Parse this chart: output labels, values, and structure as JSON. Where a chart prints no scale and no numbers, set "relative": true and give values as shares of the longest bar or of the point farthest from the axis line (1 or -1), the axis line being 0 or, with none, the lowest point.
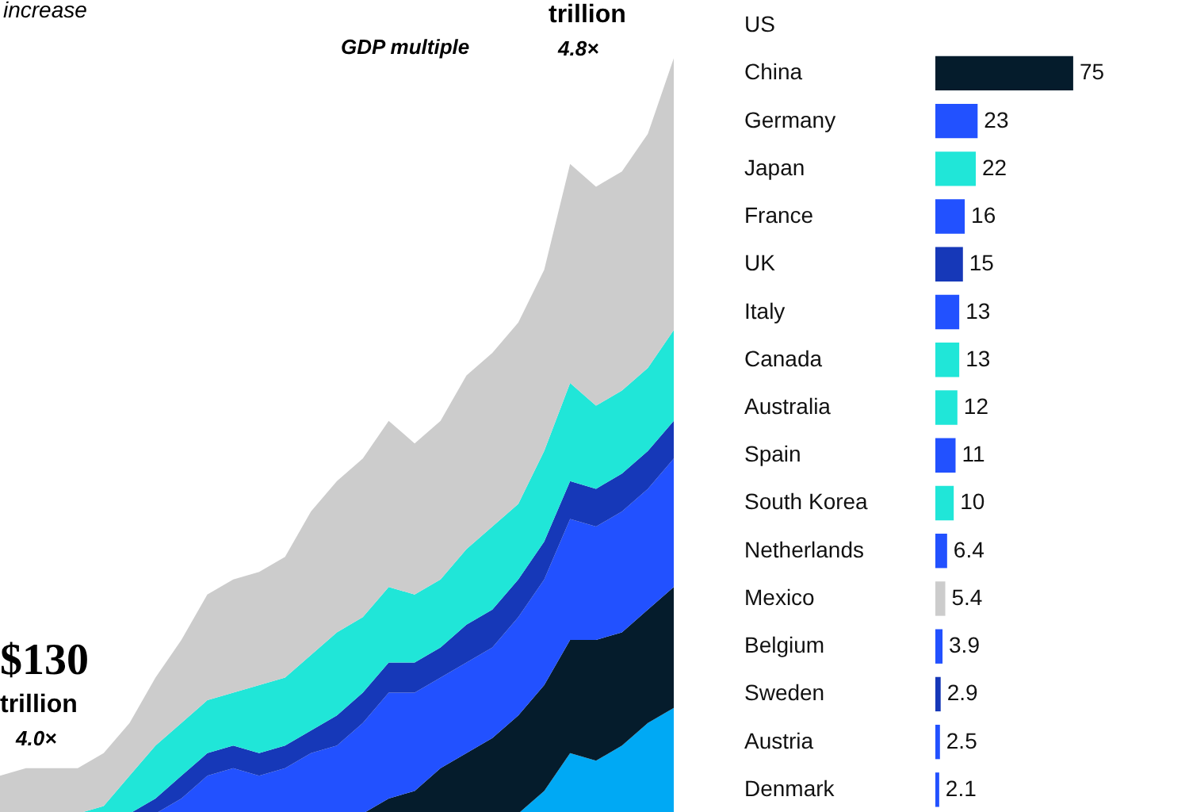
{
  "chart_data": [
    {
      "type": "area",
      "stacked": true,
      "relative": true,
      "tick_labels": false,
      "categories": [
        null,
        null,
        null,
        null,
        null,
        null,
        null,
        null,
        null,
        null,
        null,
        null,
        null,
        null,
        null,
        null,
        null,
        null,
        null,
        null,
        null,
        null,
        null,
        null,
        null,
        null,
        null
      ],
      "annotations": [
        "increase",
        "$130",
        "trillion",
        "4.0×",
        "trillion",
        "GDP multiple",
        "4.8×"
      ],
      "series": [
        {
          "color": "#00a9f4",
          "values": [
            0,
            0,
            0,
            0,
            0,
            0,
            0,
            0,
            0,
            0,
            0,
            0,
            0,
            0,
            0,
            0,
            0,
            0,
            0,
            0,
            0,
            0.03,
            0.08,
            0.07,
            0.09,
            0.12,
            0.14
          ]
        },
        {
          "color": "#051c2c",
          "values": [
            0,
            0,
            0,
            0,
            0,
            0,
            0,
            0,
            0,
            0,
            0,
            0,
            0,
            0,
            0,
            0.02,
            0.03,
            0.06,
            0.08,
            0.1,
            0.13,
            0.14,
            0.15,
            0.16,
            0.15,
            0.15,
            0.16
          ]
        },
        {
          "color": "#2251ff",
          "values": [
            0,
            0,
            0,
            0,
            0,
            0,
            0,
            0.02,
            0.05,
            0.06,
            0.05,
            0.06,
            0.08,
            0.09,
            0.12,
            0.14,
            0.13,
            0.12,
            0.12,
            0.12,
            0.13,
            0.14,
            0.16,
            0.15,
            0.16,
            0.16,
            0.17
          ]
        },
        {
          "color": "#1638b8",
          "values": [
            0,
            0,
            0,
            0,
            0,
            0,
            0.02,
            0.03,
            0.03,
            0.03,
            0.03,
            0.03,
            0.03,
            0.04,
            0.04,
            0.04,
            0.04,
            0.04,
            0.05,
            0.05,
            0.05,
            0.05,
            0.05,
            0.05,
            0.05,
            0.05,
            0.05
          ]
        },
        {
          "color": "#20e6d8",
          "values": [
            0,
            0,
            0,
            0,
            0.01,
            0.05,
            0.07,
            0.07,
            0.07,
            0.07,
            0.09,
            0.09,
            0.1,
            0.11,
            0.1,
            0.1,
            0.09,
            0.09,
            0.1,
            0.11,
            0.1,
            0.12,
            0.13,
            0.11,
            0.11,
            0.11,
            0.12
          ]
        },
        {
          "color": "#cccccc",
          "values": [
            0.05,
            0.06,
            0.06,
            0.06,
            0.07,
            0.07,
            0.09,
            0.11,
            0.14,
            0.15,
            0.15,
            0.16,
            0.19,
            0.2,
            0.21,
            0.22,
            0.2,
            0.21,
            0.23,
            0.23,
            0.24,
            0.24,
            0.29,
            0.29,
            0.29,
            0.31,
            0.36
          ]
        }
      ]
    },
    {
      "type": "bar",
      "orientation": "horizontal",
      "data_labels": true,
      "tick_labels": "y",
      "categories": [
        "US",
        "China",
        "Germany",
        "Japan",
        "France",
        "UK",
        "Italy",
        "Canada",
        "Australia",
        "Spain",
        "South Korea",
        "Netherlands",
        "Mexico",
        "Belgium",
        "Sweden",
        "Austria",
        "Denmark"
      ],
      "values": [
        null,
        75,
        23,
        22,
        16,
        15,
        13,
        13,
        12,
        11,
        10,
        6.4,
        5.4,
        3.9,
        2.9,
        2.5,
        2.1
      ],
      "colors": [
        "#00a9f4",
        "#051c2c",
        "#2251ff",
        "#20e6d8",
        "#2251ff",
        "#1638b8",
        "#2251ff",
        "#20e6d8",
        "#20e6d8",
        "#2251ff",
        "#20e6d8",
        "#2251ff",
        "#cccccc",
        "#2251ff",
        "#1638b8",
        "#2251ff",
        "#2251ff"
      ],
      "xlim": [
        0,
        138
      ]
    }
  ]
}
